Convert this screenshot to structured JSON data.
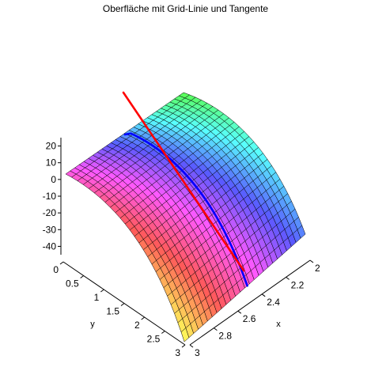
{
  "chart_data": {
    "type": "surface3d",
    "title": "Oberfläche mit Grid-Linie und Tangente",
    "xlabel": "x",
    "ylabel": "y",
    "zlabel": "",
    "x_range": [
      2,
      3
    ],
    "y_range": [
      0,
      3
    ],
    "z_range": [
      -45,
      25
    ],
    "x_ticks": [
      "2",
      "2.2",
      "2.4",
      "2.6",
      "2.8",
      "3"
    ],
    "y_ticks": [
      "0",
      "0.5",
      "1",
      "1.5",
      "2",
      "2.5",
      "3"
    ],
    "z_ticks": [
      "20",
      "10",
      "0",
      "-10",
      "-20",
      "-30",
      "-40"
    ],
    "grid_resolution": 26,
    "series": [
      {
        "name": "",
        "kind": "surface",
        "color": "rainbow"
      },
      {
        "name": "",
        "kind": "grid-line",
        "color": "#0000ff"
      },
      {
        "name": "",
        "kind": "tangent",
        "color": "#ff0000"
      }
    ],
    "colors": {
      "grid_line": "#0000ff",
      "tangent": "#ff0000",
      "mesh": "#000000"
    }
  }
}
